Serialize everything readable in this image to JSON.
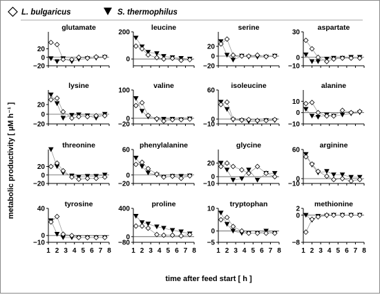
{
  "legend": {
    "lb_label": "L. bulgaricus",
    "st_label": "S. thermophilus"
  },
  "axes": {
    "xlabel": "time after feed start [ h ]",
    "ylabel": "metabolic productivity [ µM h⁻¹ ]",
    "xticks": [
      "1",
      "2",
      "3",
      "4",
      "5",
      "6",
      "7",
      "8"
    ]
  },
  "colors": {
    "lb_marker": "#ffffff",
    "st_marker": "#000000",
    "line": "#999999"
  },
  "chart_data": {
    "type": "scatter",
    "x_label": "time after feed start [ h ]",
    "y_label": "metabolic productivity [ µM h⁻¹ ]",
    "x_range": [
      1,
      8
    ],
    "series_names": [
      "L. bulgaricus",
      "S. thermophilus"
    ],
    "panels": [
      {
        "title": "glutamate",
        "ylim": [
          -20,
          60
        ],
        "yticks": [
          "20",
          "0",
          "−20"
        ],
        "ytick_values": [
          20,
          0,
          -20
        ],
        "lb": {
          "x": [
            1.3,
            2,
            2.7,
            3.7,
            4.5,
            5.5,
            6.5,
            7.5
          ],
          "y": [
            35,
            30,
            -5,
            -5,
            0,
            -2,
            1,
            1
          ]
        },
        "st": {
          "x": [
            1.3,
            2,
            2.7,
            3.7,
            4.5,
            5.5,
            6.5,
            7.5
          ],
          "y": [
            -3,
            -10,
            -3,
            -10,
            -5,
            -3,
            -2,
            0
          ]
        }
      },
      {
        "title": "leucine",
        "ylim": [
          -50,
          200
        ],
        "yticks": [
          "200",
          "0"
        ],
        "ytick_values": [
          200,
          0
        ],
        "lb": {
          "x": [
            1.3,
            2,
            2.7,
            3.7,
            4.5,
            5.5,
            6.5,
            7.5
          ],
          "y": [
            95,
            75,
            30,
            10,
            0,
            5,
            -10,
            -5
          ]
        },
        "st": {
          "x": [
            1.3,
            2,
            2.7,
            3.7,
            4.5,
            5.5,
            6.5,
            7.5
          ],
          "y": [
            155,
            90,
            50,
            40,
            20,
            10,
            5,
            0
          ]
        }
      },
      {
        "title": "serine",
        "ylim": [
          -20,
          50
        ],
        "yticks": [
          "20",
          "0",
          "−20"
        ],
        "ytick_values": [
          20,
          0,
          -20
        ],
        "lb": {
          "x": [
            1.3,
            2,
            2.7,
            3.7,
            4.5,
            5.5,
            6.5,
            7.5
          ],
          "y": [
            25,
            35,
            2,
            0,
            0,
            2,
            -1,
            0
          ]
        },
        "st": {
          "x": [
            1.3,
            2,
            2.7,
            3.7,
            4.5,
            5.5,
            6.5,
            7.5
          ],
          "y": [
            30,
            2,
            -8,
            0,
            -2,
            -2,
            -2,
            0
          ]
        }
      },
      {
        "title": "aspartate",
        "ylim": [
          -10,
          30
        ],
        "yticks": [
          "30",
          "0",
          "−10"
        ],
        "ytick_values": [
          30,
          0,
          -10
        ],
        "lb": {
          "x": [
            1.3,
            2,
            2.7,
            3.7,
            4.5,
            5.5,
            6.5,
            7.5
          ],
          "y": [
            20,
            10,
            0,
            -5,
            -2,
            -1,
            -1,
            -1
          ]
        },
        "st": {
          "x": [
            1.3,
            2,
            2.7,
            3.7,
            4.5,
            5.5,
            6.5,
            7.5
          ],
          "y": [
            3,
            -5,
            -5,
            -2,
            -1,
            -1,
            0,
            0
          ]
        }
      },
      {
        "title": "lysine",
        "ylim": [
          -20,
          50
        ],
        "yticks": [
          "20",
          "0",
          "−20"
        ],
        "ytick_values": [
          20,
          0,
          -20
        ],
        "lb": {
          "x": [
            1.3,
            2,
            2.7,
            3.7,
            4.5,
            5.5,
            6.5,
            7.5
          ],
          "y": [
            30,
            33,
            5,
            -8,
            -5,
            -5,
            -3,
            -3
          ]
        },
        "st": {
          "x": [
            1.3,
            2,
            2.7,
            3.7,
            4.5,
            5.5,
            6.5,
            7.5
          ],
          "y": [
            40,
            22,
            -8,
            -2,
            -1,
            -3,
            -8,
            0
          ]
        }
      },
      {
        "title": "valine",
        "ylim": [
          -20,
          100
        ],
        "yticks": [
          "100",
          "0",
          "−20"
        ],
        "ytick_values": [
          100,
          0,
          -20
        ],
        "lb": {
          "x": [
            1.3,
            2,
            2.7,
            3.7,
            4.5,
            5.5,
            6.5,
            7.5
          ],
          "y": [
            45,
            55,
            10,
            -2,
            -10,
            -5,
            -5,
            -3
          ]
        },
        "st": {
          "x": [
            1.3,
            2,
            2.7,
            3.7,
            4.5,
            5.5,
            6.5,
            7.5
          ],
          "y": [
            70,
            25,
            5,
            -5,
            -3,
            -3,
            -5,
            -2
          ]
        }
      },
      {
        "title": "isoleucine",
        "ylim": [
          -10,
          60
        ],
        "yticks": [
          "60",
          "0",
          "−10"
        ],
        "ytick_values": [
          60,
          0,
          -10
        ],
        "lb": {
          "x": [
            1.3,
            2,
            2.7,
            3.7,
            4.5,
            5.5,
            6.5,
            7.5
          ],
          "y": [
            30,
            35,
            0,
            -2,
            -1,
            -3,
            -3,
            -1
          ]
        },
        "st": {
          "x": [
            1.3,
            2,
            2.7,
            3.7,
            4.5,
            5.5,
            6.5,
            7.5
          ],
          "y": [
            35,
            20,
            -2,
            -3,
            -5,
            -5,
            -3,
            -3
          ]
        }
      },
      {
        "title": "alanine",
        "ylim": [
          -10,
          20
        ],
        "yticks": [
          "10",
          "0",
          "−10"
        ],
        "ytick_values": [
          10,
          0,
          -10
        ],
        "lb": {
          "x": [
            1.3,
            2,
            2.7,
            3.7,
            4.5,
            5.5,
            6.5,
            7.5
          ],
          "y": [
            8,
            9,
            0,
            -3,
            -3,
            2,
            0,
            1
          ]
        },
        "st": {
          "x": [
            1.3,
            2,
            2.7,
            3.7,
            4.5,
            5.5,
            6.5,
            7.5
          ],
          "y": [
            3,
            -3,
            -4,
            -2,
            -3,
            -2,
            -1,
            0
          ]
        }
      },
      {
        "title": "threonine",
        "ylim": [
          -20,
          60
        ],
        "yticks": [
          "20",
          "0",
          "−20"
        ],
        "ytick_values": [
          20,
          0,
          -20
        ],
        "lb": {
          "x": [
            1.3,
            2,
            2.7,
            3.7,
            4.5,
            5.5,
            6.5,
            7.5
          ],
          "y": [
            20,
            28,
            10,
            -5,
            -10,
            -8,
            -8,
            -5
          ]
        },
        "st": {
          "x": [
            1.3,
            2,
            2.7,
            3.7,
            4.5,
            5.5,
            6.5,
            7.5
          ],
          "y": [
            60,
            20,
            5,
            -2,
            -5,
            -3,
            -3,
            0
          ]
        }
      },
      {
        "title": "phenylalanine",
        "ylim": [
          -20,
          60
        ],
        "yticks": [
          "60",
          "0",
          "−20"
        ],
        "ytick_values": [
          60,
          0,
          -20
        ],
        "lb": {
          "x": [
            1.3,
            2,
            2.7,
            3.7,
            4.5,
            5.5,
            6.5,
            7.5
          ],
          "y": [
            25,
            30,
            15,
            2,
            -5,
            -3,
            -8,
            -2
          ]
        },
        "st": {
          "x": [
            1.3,
            2,
            2.7,
            3.7,
            4.5,
            5.5,
            6.5,
            7.5
          ],
          "y": [
            40,
            20,
            5,
            0,
            -5,
            -3,
            -3,
            -2
          ]
        }
      },
      {
        "title": "glycine",
        "ylim": [
          -10,
          40
        ],
        "yticks": [
          "20",
          "0",
          "−10"
        ],
        "ytick_values": [
          20,
          0,
          -10
        ],
        "lb": {
          "x": [
            1.3,
            2,
            2.7,
            3.7,
            4.5,
            5.5,
            6.5,
            7.5
          ],
          "y": [
            15,
            20,
            15,
            10,
            5,
            15,
            5,
            0
          ]
        },
        "st": {
          "x": [
            1.3,
            2,
            2.7,
            3.7,
            4.5,
            5.5,
            6.5,
            7.5
          ],
          "y": [
            20,
            10,
            -5,
            -3,
            10,
            -5,
            5,
            5
          ]
        }
      },
      {
        "title": "arginine",
        "ylim": [
          -10,
          60
        ],
        "yticks": [
          "60",
          "0",
          "−10"
        ],
        "ytick_values": [
          60,
          0,
          -10
        ],
        "lb": {
          "x": [
            1.3,
            2,
            2.7,
            3.7,
            4.5,
            5.5,
            6.5,
            7.5
          ],
          "y": [
            45,
            30,
            15,
            5,
            -2,
            0,
            -5,
            -2
          ]
        },
        "st": {
          "x": [
            1.3,
            2,
            2.7,
            3.7,
            4.5,
            5.5,
            6.5,
            7.5
          ],
          "y": [
            50,
            28,
            12,
            15,
            8,
            8,
            3,
            3
          ]
        }
      },
      {
        "title": "tyrosine",
        "ylim": [
          -10,
          40
        ],
        "yticks": [
          "40",
          "0",
          "−10"
        ],
        "ytick_values": [
          40,
          0,
          -10
        ],
        "lb": {
          "x": [
            1.3,
            2,
            2.7,
            3.7,
            4.5,
            5.5,
            6.5,
            7.5
          ],
          "y": [
            20,
            28,
            2,
            0,
            -3,
            -3,
            -3,
            -3
          ]
        },
        "st": {
          "x": [
            1.3,
            2,
            2.7,
            3.7,
            4.5,
            5.5,
            6.5,
            7.5
          ],
          "y": [
            22,
            2,
            -3,
            -3,
            -3,
            -3,
            -3,
            -3
          ]
        }
      },
      {
        "title": "proline",
        "ylim": [
          -80,
          400
        ],
        "yticks": [
          "400",
          "0",
          "−80"
        ],
        "ytick_values": [
          400,
          0,
          -80
        ],
        "lb": {
          "x": [
            1.3,
            2,
            2.7,
            3.7,
            4.5,
            5.5,
            6.5,
            7.5
          ],
          "y": [
            150,
            150,
            120,
            30,
            20,
            20,
            10,
            30
          ]
        },
        "st": {
          "x": [
            1.3,
            2,
            2.7,
            3.7,
            4.5,
            5.5,
            6.5,
            7.5
          ],
          "y": [
            290,
            200,
            180,
            140,
            120,
            90,
            70,
            40
          ]
        }
      },
      {
        "title": "tryptophan",
        "ylim": [
          -5,
          10
        ],
        "yticks": [
          "10",
          "0",
          "−5"
        ],
        "ytick_values": [
          10,
          0,
          -5
        ],
        "lb": {
          "x": [
            1.3,
            2,
            2.7,
            3.7,
            4.5,
            5.5,
            6.5,
            7.5
          ],
          "y": [
            5,
            6,
            2,
            0,
            -1,
            -1,
            -1,
            -1
          ]
        },
        "st": {
          "x": [
            1.3,
            2,
            2.7,
            3.7,
            4.5,
            5.5,
            6.5,
            7.5
          ],
          "y": [
            8,
            3,
            0,
            -1,
            -1,
            -1,
            0,
            -1
          ]
        }
      },
      {
        "title": "methionine",
        "ylim": [
          -8,
          2
        ],
        "yticks": [
          "2",
          "0",
          "−8"
        ],
        "ytick_values": [
          2,
          0,
          -8
        ],
        "lb": {
          "x": [
            1.3,
            2,
            2.7,
            3.7,
            4.5,
            5.5,
            6.5,
            7.5
          ],
          "y": [
            -5,
            -1.2,
            -0.5,
            0,
            0,
            0,
            0,
            0
          ]
        },
        "st": {
          "x": [
            1.3,
            2,
            2.7,
            3.7,
            4.5,
            5.5,
            6.5,
            7.5
          ],
          "y": [
            0,
            -1.5,
            -0.3,
            -0.2,
            0,
            0,
            0,
            0
          ]
        }
      }
    ]
  }
}
